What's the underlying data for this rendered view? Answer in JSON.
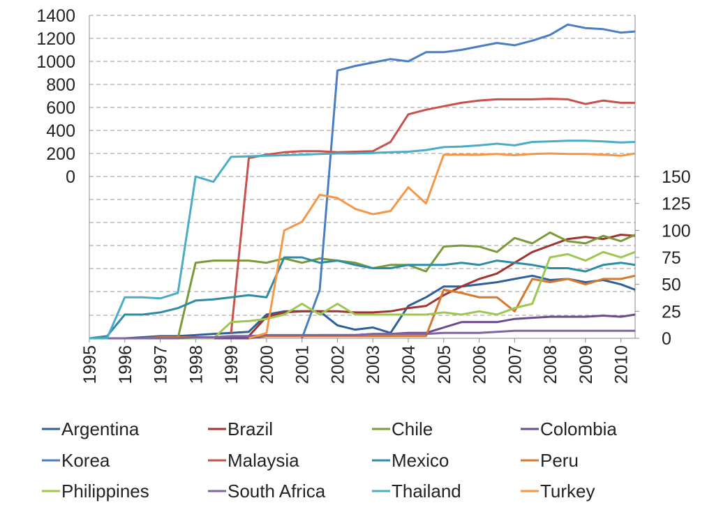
{
  "chart_data": {
    "type": "line",
    "x": [
      1995,
      1995.5,
      1996,
      1996.5,
      1997,
      1997.5,
      1998,
      1998.5,
      1999,
      1999.5,
      2000,
      2000.5,
      2001,
      2001.5,
      2002,
      2002.5,
      2003,
      2003.5,
      2004,
      2004.5,
      2005,
      2005.5,
      2006,
      2006.5,
      2007,
      2007.5,
      2008,
      2008.5,
      2009,
      2009.5,
      2010,
      2010.4
    ],
    "xlim": [
      1995,
      2010.4
    ],
    "xticks": [
      1995,
      1996,
      1997,
      1998,
      1999,
      2000,
      2001,
      2002,
      2003,
      2004,
      2005,
      2006,
      2007,
      2008,
      2009,
      2010
    ],
    "ylim": [
      0,
      1400
    ],
    "yticks": [
      0,
      200,
      400,
      600,
      800,
      1000,
      1200,
      1400
    ],
    "y2lim": [
      0,
      150
    ],
    "y2ticks": [
      0,
      25,
      50,
      75,
      100,
      125,
      150
    ],
    "grid": true,
    "series": [
      {
        "name": "Argentina",
        "color": "#2e5f98",
        "values": [
          0,
          0,
          0,
          1,
          2,
          2,
          3,
          4,
          5,
          6,
          22,
          25,
          25,
          25,
          12,
          8,
          10,
          5,
          30,
          38,
          48,
          48,
          50,
          52,
          55,
          58,
          54,
          55,
          52,
          54,
          50,
          45
        ]
      },
      {
        "name": "Brazil",
        "color": "#a0342f",
        "values": [
          0,
          0,
          0,
          0,
          0,
          0,
          0,
          0,
          1,
          2,
          20,
          24,
          25,
          25,
          25,
          24,
          24,
          25,
          28,
          30,
          40,
          48,
          55,
          60,
          70,
          80,
          86,
          92,
          94,
          92,
          96,
          95
        ]
      },
      {
        "name": "Chile",
        "color": "#7a9a3a",
        "values": [
          0,
          0,
          0,
          0,
          0,
          0,
          70,
          72,
          72,
          72,
          70,
          74,
          70,
          74,
          72,
          70,
          65,
          68,
          68,
          62,
          85,
          86,
          85,
          80,
          93,
          88,
          98,
          90,
          88,
          95,
          90,
          96
        ]
      },
      {
        "name": "Colombia",
        "color": "#6c4a8c",
        "values": [
          0,
          0,
          0,
          0,
          0,
          0,
          0,
          0,
          0,
          0,
          2,
          2,
          2,
          3,
          3,
          3,
          4,
          4,
          5,
          5,
          10,
          15,
          15,
          15,
          18,
          19,
          20,
          20,
          20,
          21,
          20,
          22
        ]
      },
      {
        "name": "Korea",
        "color": "#4a7ec4",
        "values": [
          null,
          null,
          null,
          null,
          null,
          null,
          null,
          null,
          null,
          null,
          null,
          null,
          0,
          45,
          920,
          960,
          990,
          1020,
          1000,
          1080,
          1080,
          1100,
          1130,
          1160,
          1140,
          1180,
          1230,
          1320,
          1290,
          1280,
          1250,
          1260
        ]
      },
      {
        "name": "Malaysia",
        "color": "#c9504b",
        "values": [
          null,
          null,
          null,
          null,
          null,
          null,
          null,
          null,
          5,
          160,
          190,
          210,
          220,
          220,
          210,
          215,
          220,
          300,
          540,
          580,
          610,
          640,
          660,
          670,
          670,
          670,
          675,
          670,
          630,
          660,
          640,
          640
        ]
      },
      {
        "name": "Mexico",
        "color": "#2d8ca5",
        "values": [
          0,
          2,
          22,
          22,
          24,
          28,
          35,
          36,
          38,
          40,
          38,
          75,
          75,
          70,
          72,
          68,
          65,
          65,
          68,
          68,
          68,
          70,
          68,
          72,
          70,
          68,
          65,
          65,
          62,
          68,
          70,
          68
        ]
      },
      {
        "name": "Peru",
        "color": "#d7782d",
        "values": [
          0,
          0,
          0,
          0,
          1,
          1,
          1,
          1,
          2,
          2,
          2,
          2,
          2,
          2,
          2,
          2,
          2,
          2,
          2,
          2,
          45,
          42,
          38,
          38,
          25,
          55,
          52,
          55,
          50,
          55,
          55,
          58
        ]
      },
      {
        "name": "Philippines",
        "color": "#9dc74e",
        "values": [
          0,
          0,
          0,
          0,
          0,
          0,
          0,
          0,
          15,
          16,
          18,
          22,
          32,
          22,
          32,
          22,
          22,
          22,
          22,
          22,
          24,
          22,
          25,
          22,
          28,
          32,
          75,
          78,
          72,
          80,
          75,
          80
        ]
      },
      {
        "name": "South Africa",
        "color": "#8064a2",
        "values": [
          0,
          0,
          0,
          0,
          0,
          0,
          1,
          1,
          2,
          2,
          3,
          3,
          3,
          3,
          3,
          3,
          4,
          4,
          4,
          4,
          5,
          5,
          5,
          6,
          7,
          7,
          7,
          7,
          7,
          7,
          7,
          7
        ]
      },
      {
        "name": "Thailand",
        "color": "#4bacc6",
        "values": [
          0,
          0,
          38,
          38,
          37,
          42,
          150,
          145,
          170,
          175,
          180,
          185,
          190,
          195,
          200,
          200,
          205,
          210,
          215,
          230,
          255,
          260,
          270,
          285,
          270,
          300,
          305,
          310,
          310,
          305,
          295,
          300
        ]
      },
      {
        "name": "Turkey",
        "color": "#f79646",
        "values": [
          null,
          null,
          null,
          null,
          null,
          null,
          null,
          null,
          null,
          0,
          5,
          100,
          108,
          133,
          130,
          120,
          115,
          118,
          140,
          125,
          190,
          190,
          190,
          195,
          185,
          195,
          200,
          195,
          195,
          190,
          180,
          200
        ]
      }
    ]
  }
}
